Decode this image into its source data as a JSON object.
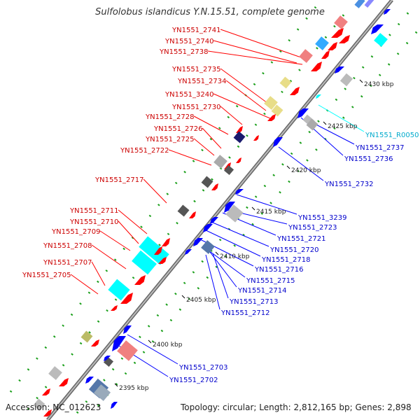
{
  "title": "Sulfolobus islandicus Y.N.15.51, complete genome",
  "accession": "Accession: NC_012623",
  "summary": "Topology: circular; Length: 2,812,165 bp; Genes: 2,898",
  "colors": {
    "axis": "#888888",
    "red": "#ff0000",
    "blue": "#0000ff",
    "cyan": "#00ffff",
    "green": "#1a9f1a",
    "forward_label": "#cc0000",
    "reverse_label": "#0000cc",
    "rna_label": "#00aacc"
  },
  "kbp_ticks": [
    "2430 kbp",
    "2425 kbp",
    "2420 kbp",
    "2415 kbp",
    "2410 kbp",
    "2405 kbp",
    "2400 kbp",
    "2395 kbp"
  ],
  "left_labels": [
    "YN1551_2741",
    "YN1551_2740",
    "YN1551_2738",
    "YN1551_2735",
    "YN1551_2734",
    "YN1551_3240",
    "YN1551_2730",
    "YN1551_2728",
    "YN1551_2726",
    "YN1551_2725",
    "YN1551_2722",
    "YN1551_2717",
    "YN1551_2711",
    "YN1551_2710",
    "YN1551_2709",
    "YN1551_2708",
    "YN1551_2707",
    "YN1551_2705"
  ],
  "right_labels_rna": [
    "YN1551_R0050"
  ],
  "right_labels": [
    "YN1551_2737",
    "YN1551_2736",
    "YN1551_2732",
    "YN1551_3239",
    "YN1551_2723",
    "YN1551_2721",
    "YN1551_2720",
    "YN1551_2718",
    "YN1551_2716",
    "YN1551_2715",
    "YN1551_2714",
    "YN1551_2713",
    "YN1551_2712",
    "YN1551_2703",
    "YN1551_2702"
  ]
}
